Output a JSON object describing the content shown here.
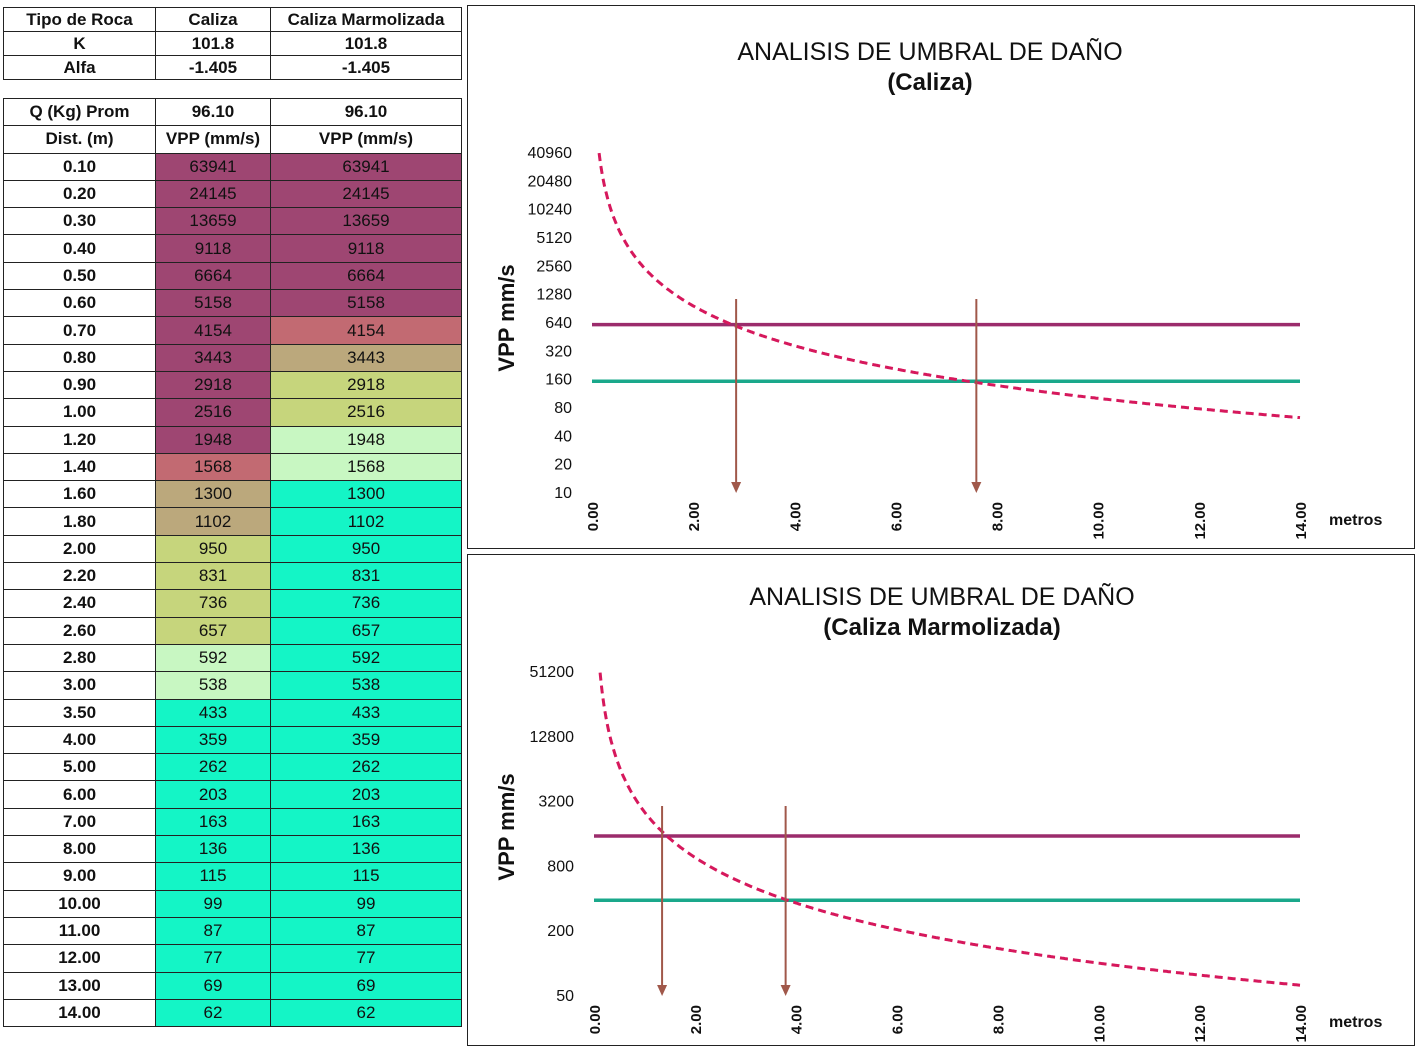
{
  "params_table": {
    "headers": [
      "Tipo de Roca",
      "Caliza",
      "Caliza Marmolizada"
    ],
    "rows": [
      {
        "label": "K",
        "caliza": "101.8",
        "marmolizada": "101.8"
      },
      {
        "label": "Alfa",
        "caliza": "-1.405",
        "marmolizada": "-1.405"
      }
    ]
  },
  "vpp_table": {
    "q_row": {
      "label": "Q (Kg) Prom",
      "caliza": "96.10",
      "marmolizada": "96.10"
    },
    "header": {
      "dist": "Dist. (m)",
      "caliza": "VPP (mm/s)",
      "marmolizada": "VPP (mm/s)"
    },
    "rows": [
      {
        "dist": "0.10",
        "caliza": "63941",
        "marmolizada": "63941"
      },
      {
        "dist": "0.20",
        "caliza": "24145",
        "marmolizada": "24145"
      },
      {
        "dist": "0.30",
        "caliza": "13659",
        "marmolizada": "13659"
      },
      {
        "dist": "0.40",
        "caliza": "9118",
        "marmolizada": "9118"
      },
      {
        "dist": "0.50",
        "caliza": "6664",
        "marmolizada": "6664"
      },
      {
        "dist": "0.60",
        "caliza": "5158",
        "marmolizada": "5158"
      },
      {
        "dist": "0.70",
        "caliza": "4154",
        "marmolizada": "4154"
      },
      {
        "dist": "0.80",
        "caliza": "3443",
        "marmolizada": "3443"
      },
      {
        "dist": "0.90",
        "caliza": "2918",
        "marmolizada": "2918"
      },
      {
        "dist": "1.00",
        "caliza": "2516",
        "marmolizada": "2516"
      },
      {
        "dist": "1.20",
        "caliza": "1948",
        "marmolizada": "1948"
      },
      {
        "dist": "1.40",
        "caliza": "1568",
        "marmolizada": "1568"
      },
      {
        "dist": "1.60",
        "caliza": "1300",
        "marmolizada": "1300"
      },
      {
        "dist": "1.80",
        "caliza": "1102",
        "marmolizada": "1102"
      },
      {
        "dist": "2.00",
        "caliza": "950",
        "marmolizada": "950"
      },
      {
        "dist": "2.20",
        "caliza": "831",
        "marmolizada": "831"
      },
      {
        "dist": "2.40",
        "caliza": "736",
        "marmolizada": "736"
      },
      {
        "dist": "2.60",
        "caliza": "657",
        "marmolizada": "657"
      },
      {
        "dist": "2.80",
        "caliza": "592",
        "marmolizada": "592"
      },
      {
        "dist": "3.00",
        "caliza": "538",
        "marmolizada": "538"
      },
      {
        "dist": "3.50",
        "caliza": "433",
        "marmolizada": "433"
      },
      {
        "dist": "4.00",
        "caliza": "359",
        "marmolizada": "359"
      },
      {
        "dist": "5.00",
        "caliza": "262",
        "marmolizada": "262"
      },
      {
        "dist": "6.00",
        "caliza": "203",
        "marmolizada": "203"
      },
      {
        "dist": "7.00",
        "caliza": "163",
        "marmolizada": "163"
      },
      {
        "dist": "8.00",
        "caliza": "136",
        "marmolizada": "136"
      },
      {
        "dist": "9.00",
        "caliza": "115",
        "marmolizada": "115"
      },
      {
        "dist": "10.00",
        "caliza": "99",
        "marmolizada": "99"
      },
      {
        "dist": "11.00",
        "caliza": "87",
        "marmolizada": "87"
      },
      {
        "dist": "12.00",
        "caliza": "77",
        "marmolizada": "77"
      },
      {
        "dist": "13.00",
        "caliza": "69",
        "marmolizada": "69"
      },
      {
        "dist": "14.00",
        "caliza": "62",
        "marmolizada": "62"
      }
    ],
    "color_scale": {
      "high": "#9e4672",
      "mid_red": "#c26a72",
      "mid_tan": "#bba87c",
      "mid_olive": "#c6d57c",
      "pale_green": "#c8f7c2",
      "cyan": "#14f5c6",
      "caliza_thresholds": [
        1700,
        1400,
        1050,
        600,
        500
      ],
      "marmolizada_thresholds": [
        4500,
        3800,
        3000,
        2300,
        1400,
        1050
      ]
    }
  },
  "chart_data": [
    {
      "type": "line",
      "title": "ANALISIS DE UMBRAL DE DAÑO",
      "subtitle": "(Caliza)",
      "xlabel": "metros",
      "ylabel": "VPP mm/s",
      "y_scale": "log",
      "ylim": [
        10,
        40960
      ],
      "y_ticks": [
        "10",
        "20",
        "40",
        "80",
        "160",
        "320",
        "640",
        "1280",
        "2560",
        "5120",
        "10240",
        "20480",
        "40960"
      ],
      "xlim": [
        0,
        14
      ],
      "x_ticks": [
        "0.00",
        "2.00",
        "4.00",
        "6.00",
        "8.00",
        "10.00",
        "12.00",
        "14.00"
      ],
      "curve": {
        "name": "VPP",
        "K": 101.8,
        "alfa": -1.405,
        "Q": 96.1,
        "style": "dashed",
        "color": "#d6185c"
      },
      "thresholds": [
        {
          "name": "umbral-superior",
          "value": 600,
          "color": "#9b2c6c"
        },
        {
          "name": "umbral-inferior",
          "value": 150,
          "color": "#1aa88b"
        }
      ],
      "intersections_x": [
        2.85,
        7.6
      ],
      "arrow_color": "#a0584a"
    },
    {
      "type": "line",
      "title": "ANALISIS DE UMBRAL DE DAÑO",
      "subtitle": "(Caliza Marmolizada)",
      "xlabel": "metros",
      "ylabel": "VPP mm/s",
      "y_scale": "log",
      "ylim": [
        50,
        51200
      ],
      "y_ticks": [
        "50",
        "200",
        "800",
        "3200",
        "12800",
        "51200"
      ],
      "xlim": [
        0,
        14
      ],
      "x_ticks": [
        "0.00",
        "2.00",
        "4.00",
        "6.00",
        "8.00",
        "10.00",
        "12.00",
        "14.00"
      ],
      "curve": {
        "name": "VPP",
        "K": 101.8,
        "alfa": -1.405,
        "Q": 96.1,
        "style": "dashed",
        "color": "#d6185c"
      },
      "thresholds": [
        {
          "name": "umbral-superior",
          "value": 1500,
          "color": "#9b2c6c"
        },
        {
          "name": "umbral-inferior",
          "value": 380,
          "color": "#1aa88b"
        }
      ],
      "intersections_x": [
        1.35,
        3.8
      ],
      "arrow_color": "#a0584a"
    }
  ]
}
